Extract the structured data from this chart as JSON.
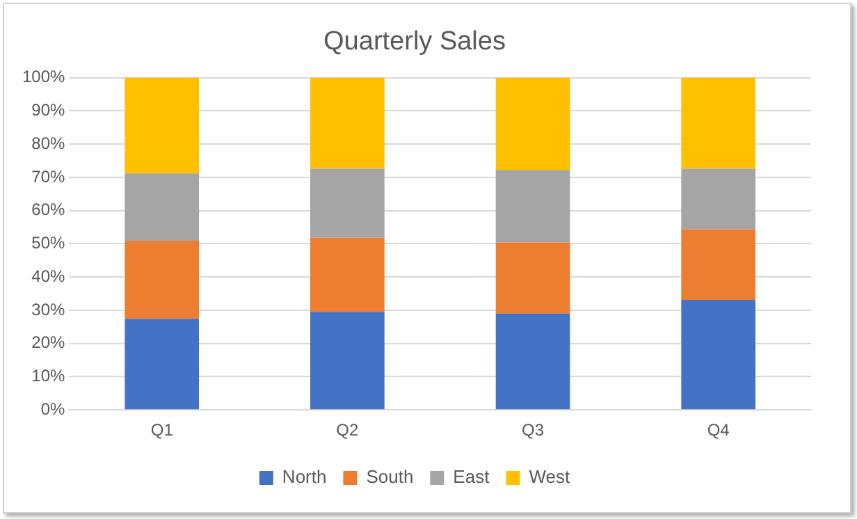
{
  "chart_data": {
    "type": "bar",
    "title": "Quarterly Sales",
    "stacked": true,
    "categories": [
      "Q1",
      "Q2",
      "Q3",
      "Q4"
    ],
    "series": [
      {
        "name": "North",
        "color": "#4472c4",
        "values": [
          27.4,
          29.5,
          29.0,
          33.1
        ]
      },
      {
        "name": "South",
        "color": "#ed7d31",
        "values": [
          23.5,
          22.3,
          21.4,
          21.3
        ]
      },
      {
        "name": "East",
        "color": "#a5a5a5",
        "values": [
          20.3,
          20.8,
          21.8,
          18.2
        ]
      },
      {
        "name": "West",
        "color": "#ffc000",
        "values": [
          28.8,
          27.4,
          27.8,
          27.4
        ]
      }
    ],
    "ylim": [
      0,
      100
    ],
    "yticks": [
      {
        "value": 0,
        "label": "0%"
      },
      {
        "value": 10,
        "label": "10%"
      },
      {
        "value": 20,
        "label": "20%"
      },
      {
        "value": 30,
        "label": "30%"
      },
      {
        "value": 40,
        "label": "40%"
      },
      {
        "value": 50,
        "label": "50%"
      },
      {
        "value": 60,
        "label": "60%"
      },
      {
        "value": 70,
        "label": "70%"
      },
      {
        "value": 80,
        "label": "80%"
      },
      {
        "value": 90,
        "label": "90%"
      },
      {
        "value": 100,
        "label": "100%"
      }
    ],
    "grid": "y",
    "legend": "bottom"
  }
}
